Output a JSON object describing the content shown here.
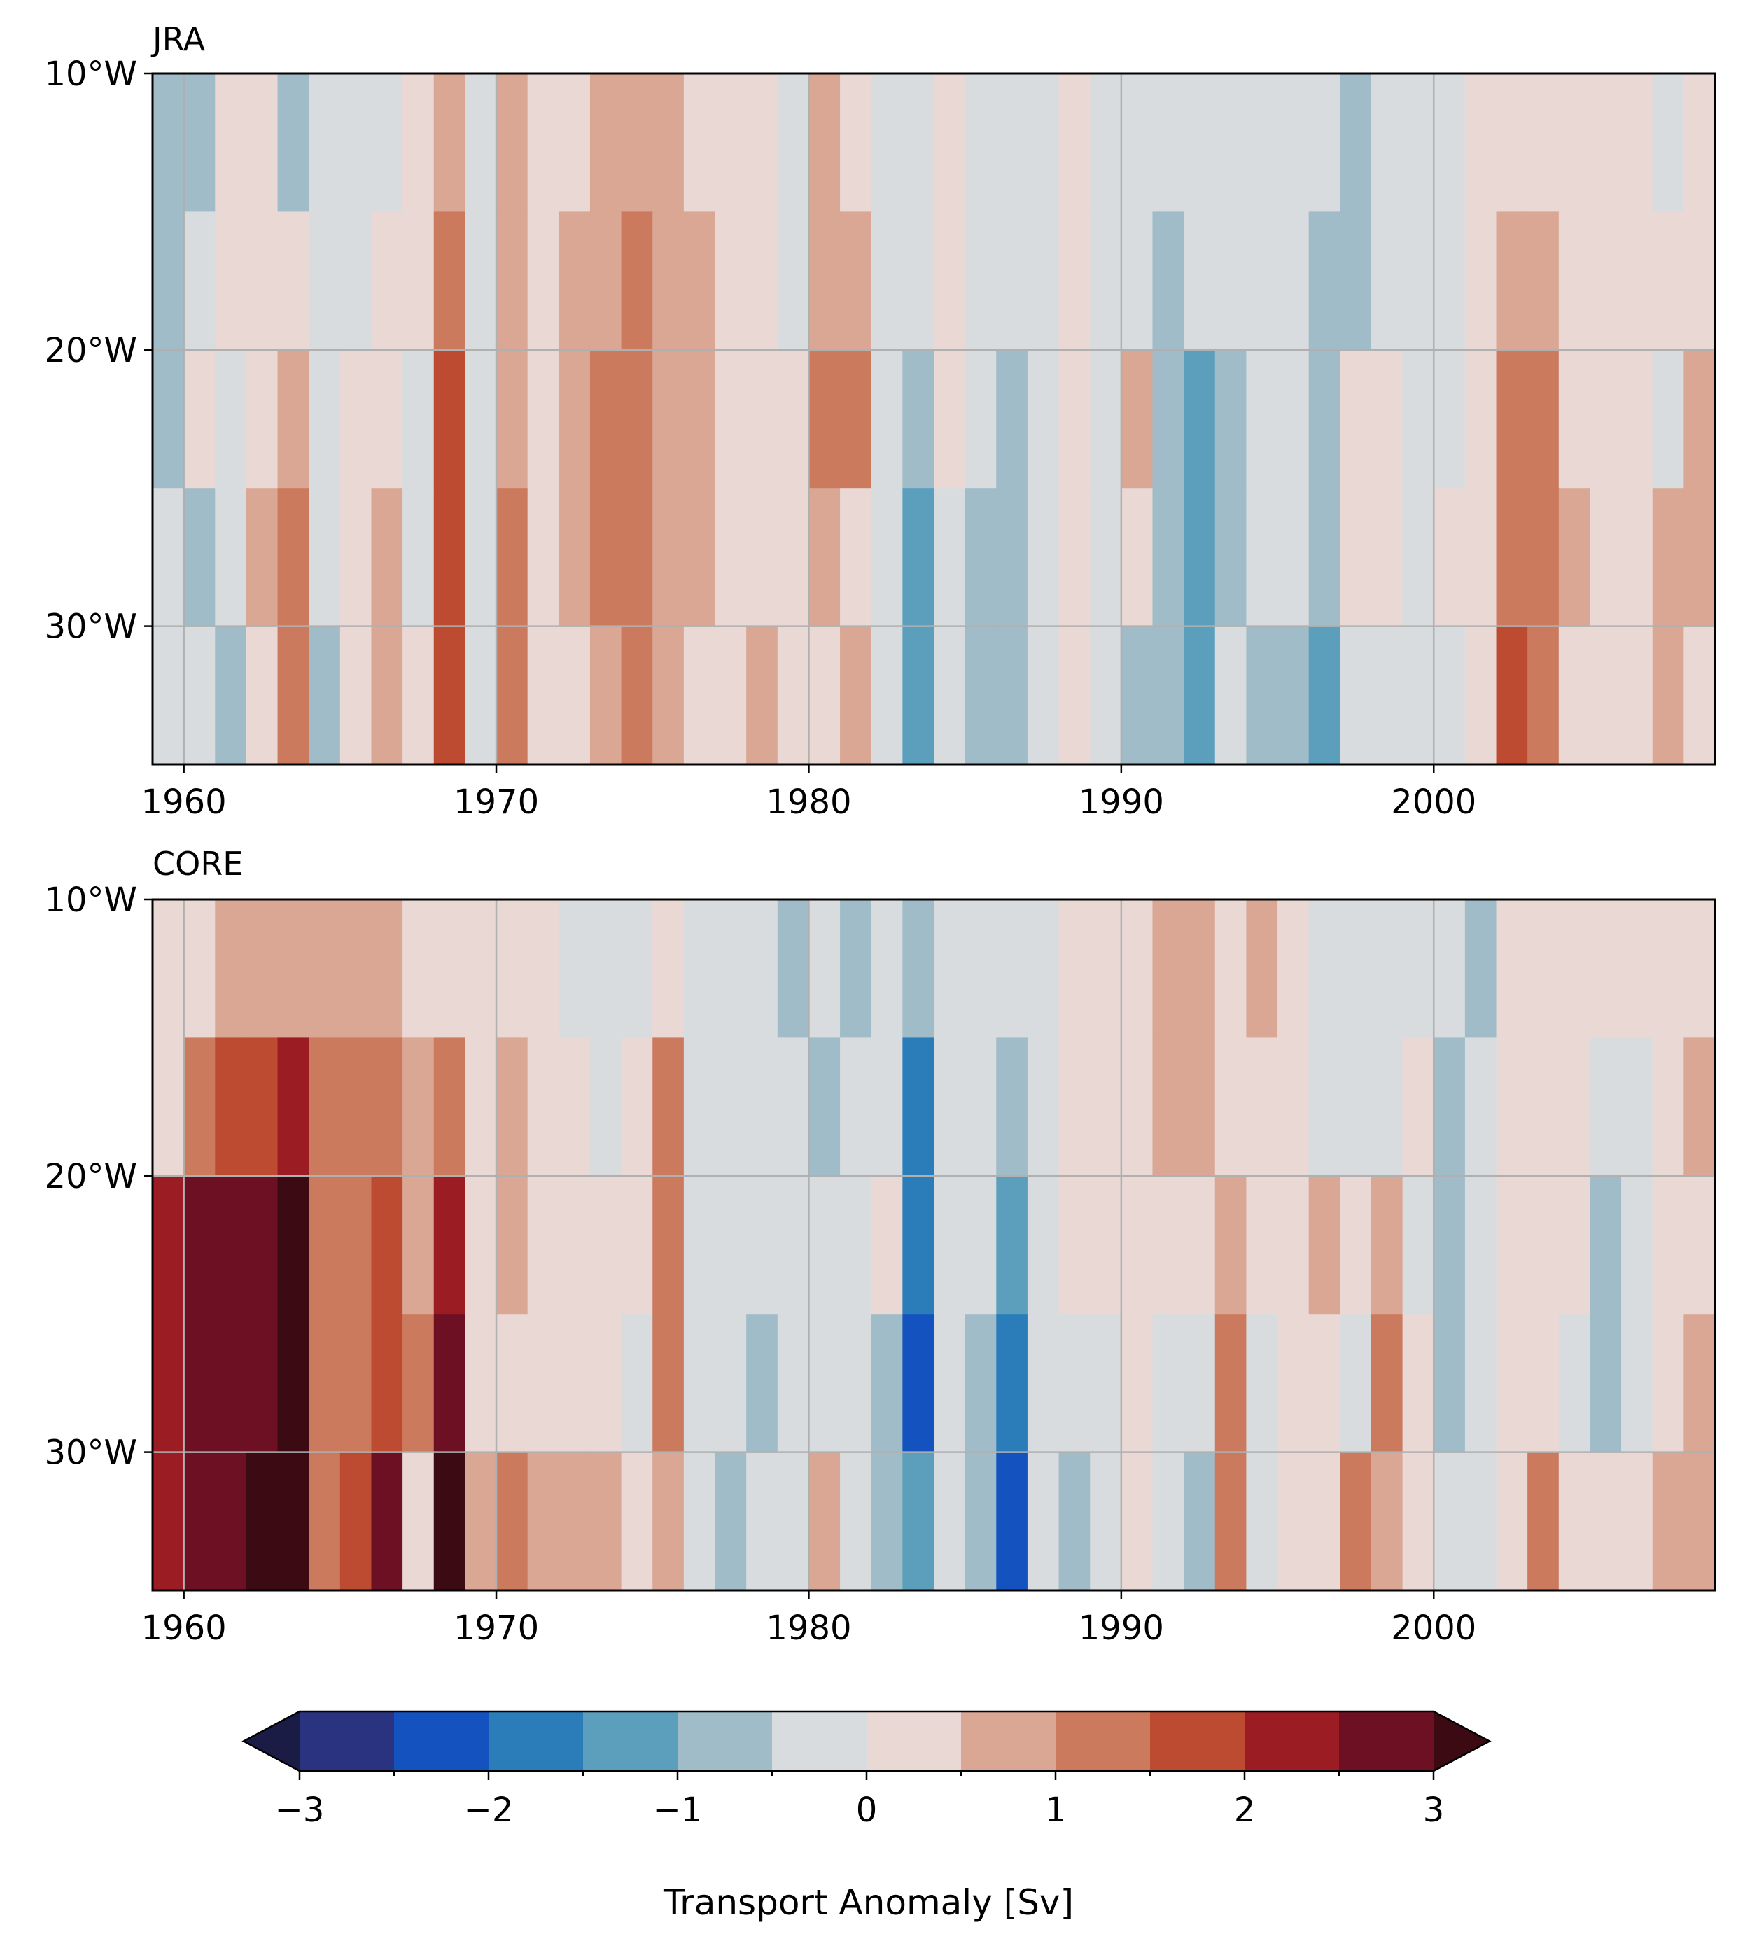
{
  "chart_data": [
    {
      "type": "heatmap",
      "title": "JRA",
      "x_ticks": [
        1960,
        1970,
        1980,
        1990,
        2000
      ],
      "x_tick_labels": [
        "1960",
        "1970",
        "1980",
        "1990",
        "2000"
      ],
      "y_ticks": [
        10,
        20,
        30
      ],
      "y_tick_labels": [
        "10°W",
        "20°W",
        "30°W"
      ],
      "xlim": [
        1959,
        2009
      ],
      "ylim": [
        35,
        10
      ],
      "grid": true,
      "cell_years": [
        1959,
        1960,
        1961,
        1962,
        1963,
        1964,
        1965,
        1966,
        1967,
        1968,
        1969,
        1970,
        1971,
        1972,
        1973,
        1974,
        1975,
        1976,
        1977,
        1978,
        1979,
        1980,
        1981,
        1982,
        1983,
        1984,
        1985,
        1986,
        1987,
        1988,
        1989,
        1990,
        1991,
        1992,
        1993,
        1994,
        1995,
        1996,
        1997,
        1998,
        1999,
        2000,
        2001,
        2002,
        2003,
        2004,
        2005,
        2006,
        2007,
        2008
      ],
      "rows": [
        {
          "lon_range": [
            10,
            15
          ],
          "values": [
            -0.6,
            -0.6,
            0.3,
            0.3,
            -0.6,
            -0.2,
            -0.2,
            -0.2,
            0.3,
            0.8,
            -0.2,
            0.8,
            0.3,
            0.3,
            0.8,
            0.8,
            0.8,
            0.3,
            0.3,
            0.3,
            -0.2,
            0.8,
            0.3,
            -0.2,
            -0.2,
            0.3,
            -0.2,
            -0.2,
            -0.2,
            0.3,
            -0.2,
            -0.2,
            -0.2,
            -0.2,
            -0.2,
            -0.2,
            -0.2,
            -0.2,
            -0.6,
            -0.2,
            -0.2,
            -0.2,
            0.3,
            0.3,
            0.3,
            0.3,
            0.3,
            0.3,
            -0.2,
            0.3
          ]
        },
        {
          "lon_range": [
            15,
            20
          ],
          "values": [
            -0.6,
            -0.2,
            0.3,
            0.3,
            0.3,
            -0.2,
            -0.2,
            0.3,
            0.3,
            1.3,
            -0.2,
            0.8,
            0.3,
            0.8,
            0.8,
            1.3,
            0.8,
            0.8,
            0.3,
            0.3,
            -0.2,
            0.8,
            0.8,
            -0.2,
            -0.2,
            0.3,
            -0.2,
            -0.2,
            -0.2,
            0.3,
            -0.2,
            -0.2,
            -0.6,
            -0.2,
            -0.2,
            -0.2,
            -0.2,
            -0.6,
            -0.6,
            -0.2,
            -0.2,
            -0.2,
            0.3,
            0.8,
            0.8,
            0.3,
            0.3,
            0.3,
            0.3,
            0.3
          ]
        },
        {
          "lon_range": [
            20,
            25
          ],
          "values": [
            -0.6,
            0.3,
            -0.2,
            0.3,
            0.8,
            -0.2,
            0.3,
            0.3,
            -0.2,
            1.8,
            -0.2,
            0.8,
            0.3,
            0.8,
            1.3,
            1.3,
            0.8,
            0.8,
            0.3,
            0.3,
            0.3,
            1.3,
            1.3,
            -0.2,
            -0.6,
            0.3,
            -0.2,
            -0.6,
            -0.2,
            0.3,
            -0.2,
            0.8,
            -0.6,
            -1.1,
            -0.6,
            -0.2,
            -0.2,
            -0.6,
            0.3,
            0.3,
            -0.2,
            -0.2,
            0.3,
            1.3,
            1.3,
            0.3,
            0.3,
            0.3,
            -0.2,
            0.8
          ]
        },
        {
          "lon_range": [
            25,
            30
          ],
          "values": [
            -0.2,
            -0.6,
            -0.2,
            0.8,
            1.3,
            -0.2,
            0.3,
            0.8,
            -0.2,
            1.8,
            -0.2,
            1.3,
            0.3,
            0.8,
            1.3,
            1.3,
            0.8,
            0.8,
            0.3,
            0.3,
            0.3,
            0.8,
            0.3,
            -0.2,
            -1.1,
            -0.2,
            -0.6,
            -0.6,
            -0.2,
            0.3,
            -0.2,
            0.3,
            -0.6,
            -1.1,
            -0.6,
            -0.2,
            -0.2,
            -0.6,
            0.3,
            0.3,
            -0.2,
            0.3,
            0.3,
            1.3,
            1.3,
            0.8,
            0.3,
            0.3,
            0.8,
            0.8
          ]
        },
        {
          "lon_range": [
            30,
            35
          ],
          "values": [
            -0.2,
            -0.2,
            -0.6,
            0.3,
            1.3,
            -0.6,
            0.3,
            0.8,
            0.3,
            1.8,
            -0.2,
            1.3,
            0.3,
            0.3,
            0.8,
            1.3,
            0.8,
            0.3,
            0.3,
            0.8,
            0.3,
            0.3,
            0.8,
            -0.2,
            -1.1,
            -0.2,
            -0.6,
            -0.6,
            -0.2,
            0.3,
            -0.2,
            -0.6,
            -0.6,
            -1.1,
            -0.2,
            -0.6,
            -0.6,
            -1.1,
            -0.2,
            -0.2,
            -0.2,
            -0.2,
            0.3,
            1.8,
            1.3,
            0.3,
            0.3,
            0.3,
            0.8,
            0.3
          ]
        }
      ]
    },
    {
      "type": "heatmap",
      "title": "CORE",
      "x_ticks": [
        1960,
        1970,
        1980,
        1990,
        2000
      ],
      "x_tick_labels": [
        "1960",
        "1970",
        "1980",
        "1990",
        "2000"
      ],
      "y_ticks": [
        10,
        20,
        30
      ],
      "y_tick_labels": [
        "10°W",
        "20°W",
        "30°W"
      ],
      "xlim": [
        1959,
        2009
      ],
      "ylim": [
        35,
        10
      ],
      "grid": true,
      "cell_years": [
        1959,
        1960,
        1961,
        1962,
        1963,
        1964,
        1965,
        1966,
        1967,
        1968,
        1969,
        1970,
        1971,
        1972,
        1973,
        1974,
        1975,
        1976,
        1977,
        1978,
        1979,
        1980,
        1981,
        1982,
        1983,
        1984,
        1985,
        1986,
        1987,
        1988,
        1989,
        1990,
        1991,
        1992,
        1993,
        1994,
        1995,
        1996,
        1997,
        1998,
        1999,
        2000,
        2001,
        2002,
        2003,
        2004,
        2005,
        2006,
        2007,
        2008
      ],
      "rows": [
        {
          "lon_range": [
            10,
            15
          ],
          "values": [
            0.3,
            0.3,
            0.8,
            0.8,
            0.8,
            0.8,
            0.8,
            0.8,
            0.3,
            0.3,
            0.3,
            0.3,
            0.3,
            -0.2,
            -0.2,
            -0.2,
            0.3,
            -0.2,
            -0.2,
            -0.2,
            -0.6,
            -0.2,
            -0.6,
            -0.2,
            -0.6,
            -0.2,
            -0.2,
            -0.2,
            -0.2,
            0.3,
            0.3,
            0.3,
            0.8,
            0.8,
            0.3,
            0.8,
            0.3,
            -0.2,
            -0.2,
            -0.2,
            -0.2,
            -0.2,
            -0.6,
            0.3,
            0.3,
            0.3,
            0.3,
            0.3,
            0.3,
            0.3
          ]
        },
        {
          "lon_range": [
            15,
            20
          ],
          "values": [
            0.3,
            1.3,
            1.8,
            1.8,
            2.3,
            1.3,
            1.3,
            1.3,
            0.8,
            1.3,
            0.3,
            0.8,
            0.3,
            0.3,
            -0.2,
            0.3,
            1.3,
            -0.2,
            -0.2,
            -0.2,
            -0.2,
            -0.6,
            -0.2,
            -0.2,
            -1.6,
            -0.2,
            -0.2,
            -0.6,
            -0.2,
            0.3,
            0.3,
            0.3,
            0.8,
            0.8,
            0.3,
            0.3,
            0.3,
            -0.2,
            -0.2,
            -0.2,
            0.3,
            -0.6,
            -0.2,
            0.3,
            0.3,
            0.3,
            -0.2,
            -0.2,
            0.3,
            0.8
          ]
        },
        {
          "lon_range": [
            20,
            25
          ],
          "values": [
            2.3,
            2.8,
            2.8,
            2.8,
            3.2,
            1.3,
            1.3,
            1.8,
            0.8,
            2.3,
            0.3,
            0.8,
            0.3,
            0.3,
            0.3,
            0.3,
            1.3,
            -0.2,
            -0.2,
            -0.2,
            -0.2,
            -0.2,
            -0.2,
            0.3,
            -1.6,
            -0.2,
            -0.2,
            -1.1,
            -0.2,
            0.3,
            0.3,
            0.3,
            0.3,
            0.3,
            0.8,
            0.3,
            0.3,
            0.8,
            0.3,
            0.8,
            -0.2,
            -0.6,
            -0.2,
            0.3,
            0.3,
            0.3,
            -0.6,
            -0.2,
            0.3,
            0.3
          ]
        },
        {
          "lon_range": [
            25,
            30
          ],
          "values": [
            2.3,
            2.8,
            2.8,
            2.8,
            3.2,
            1.3,
            1.3,
            1.8,
            1.3,
            2.8,
            0.3,
            0.3,
            0.3,
            0.3,
            0.3,
            -0.2,
            1.3,
            -0.2,
            -0.2,
            -0.6,
            -0.2,
            -0.2,
            -0.2,
            -0.6,
            -2.1,
            -0.2,
            -0.6,
            -1.6,
            -0.2,
            -0.2,
            -0.2,
            0.3,
            -0.2,
            -0.2,
            1.3,
            -0.2,
            0.3,
            0.3,
            -0.2,
            1.3,
            0.3,
            -0.6,
            -0.2,
            0.3,
            0.3,
            -0.2,
            -0.6,
            -0.2,
            0.3,
            0.8
          ]
        },
        {
          "lon_range": [
            30,
            35
          ],
          "values": [
            2.3,
            2.8,
            2.8,
            3.2,
            3.2,
            1.3,
            1.8,
            2.8,
            0.3,
            3.2,
            0.8,
            1.3,
            0.8,
            0.8,
            0.8,
            0.3,
            0.8,
            -0.2,
            -0.6,
            -0.2,
            -0.2,
            0.8,
            -0.2,
            -0.6,
            -1.1,
            -0.2,
            -0.6,
            -2.1,
            -0.2,
            -0.6,
            -0.2,
            0.3,
            -0.2,
            -0.6,
            1.3,
            -0.2,
            0.3,
            0.3,
            1.3,
            0.8,
            0.3,
            -0.2,
            -0.2,
            0.3,
            1.3,
            0.3,
            0.3,
            0.3,
            0.8,
            0.8
          ]
        }
      ]
    }
  ],
  "colorbar": {
    "label": "Transport Anomaly [Sv]",
    "ticks": [
      -3,
      -2,
      -1,
      0,
      1,
      2,
      3
    ],
    "tick_labels": [
      "−3",
      "−2",
      "−1",
      "0",
      "1",
      "2",
      "3"
    ],
    "boundaries": [
      -3,
      -2.5,
      -2,
      -1.5,
      -1,
      -0.5,
      0,
      0.5,
      1,
      1.5,
      2,
      2.5,
      3
    ],
    "extend": "both",
    "under_color": "#1b1c45",
    "over_color": "#3c0a12",
    "colors": [
      "#2a3380",
      "#1452c0",
      "#2b7dba",
      "#5c9fbd",
      "#9fbcc8",
      "#d8dcdf",
      "#ead8d5",
      "#d9a794",
      "#cc7a5e",
      "#bc4b31",
      "#9b1c23",
      "#6d1024"
    ]
  }
}
